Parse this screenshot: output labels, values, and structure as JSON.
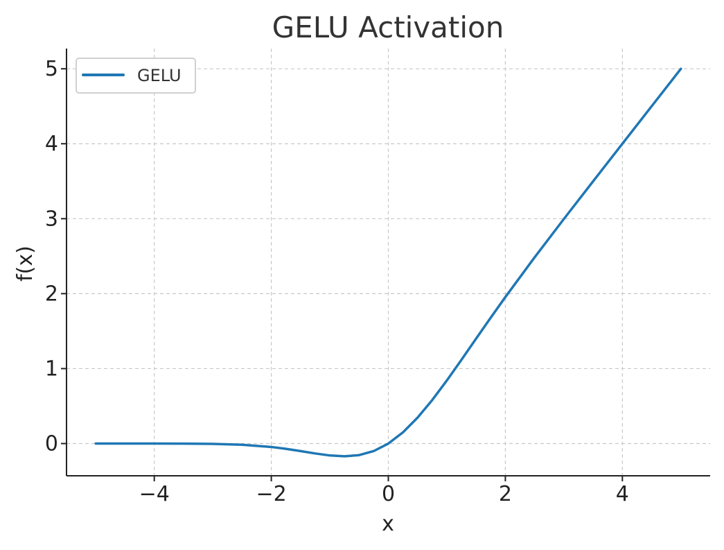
{
  "chart_data": {
    "type": "line",
    "title": "GELU Activation",
    "xlabel": "x",
    "ylabel": "f(x)",
    "xlim": [
      -5.5,
      5.5
    ],
    "ylim": [
      -0.43,
      5.27
    ],
    "x_ticks": [
      -4,
      -2,
      0,
      2,
      4
    ],
    "x_tick_labels": [
      "−4",
      "−2",
      "0",
      "2",
      "4"
    ],
    "y_ticks": [
      0,
      1,
      2,
      3,
      4,
      5
    ],
    "y_tick_labels": [
      "0",
      "1",
      "2",
      "3",
      "4",
      "5"
    ],
    "grid": true,
    "legend": {
      "placement": "top-left",
      "entries": [
        "GELU"
      ]
    },
    "series": [
      {
        "name": "GELU",
        "color": "#1f77b4",
        "x": [
          -5.0,
          -4.5,
          -4.0,
          -3.5,
          -3.0,
          -2.5,
          -2.0,
          -1.75,
          -1.5,
          -1.25,
          -1.0,
          -0.75,
          -0.5,
          -0.25,
          0.0,
          0.25,
          0.5,
          0.75,
          1.0,
          1.25,
          1.5,
          1.75,
          2.0,
          2.5,
          3.0,
          3.5,
          4.0,
          4.5,
          5.0
        ],
        "y": [
          0.0,
          0.0,
          -0.0001,
          -0.0008,
          -0.004,
          -0.0155,
          -0.0455,
          -0.0704,
          -0.1002,
          -0.132,
          -0.1587,
          -0.17,
          -0.1543,
          -0.1003,
          0.0,
          0.1497,
          0.3457,
          0.58,
          0.8413,
          1.118,
          1.3998,
          1.6796,
          1.9545,
          2.4845,
          2.996,
          3.4992,
          3.9999,
          4.5,
          5.0
        ]
      }
    ]
  }
}
